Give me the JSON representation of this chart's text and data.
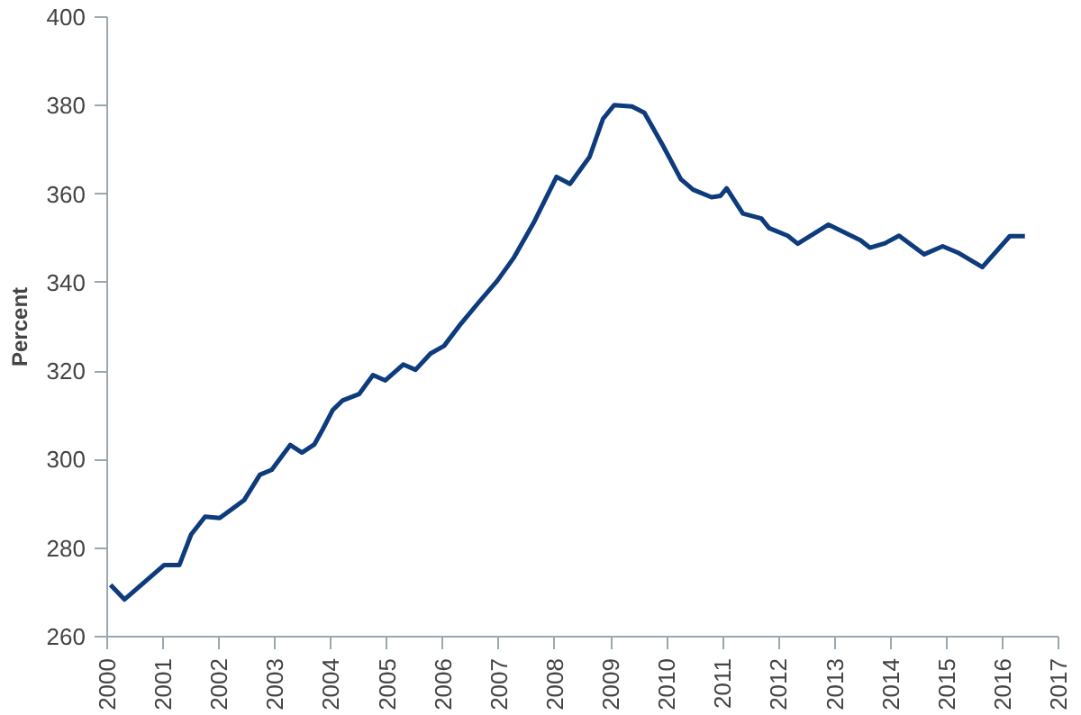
{
  "chart_data": {
    "type": "line",
    "ylabel": "Percent",
    "xlim": [
      2000,
      2017
    ],
    "xticks": [
      2000,
      2001,
      2002,
      2003,
      2004,
      2005,
      2006,
      2007,
      2008,
      2009,
      2010,
      2011,
      2012,
      2013,
      2014,
      2015,
      2016,
      2017
    ],
    "ylim": [
      260,
      400
    ],
    "yticks": [
      260,
      280,
      300,
      320,
      340,
      360,
      380,
      400
    ],
    "grid": false,
    "marker": "none",
    "line_style": "solid",
    "series": [
      {
        "color": "#0d3b7c",
        "x": [
          2000.06,
          2000.31,
          2001.02,
          2001.29,
          2001.5,
          2001.75,
          2002.01,
          2002.45,
          2002.73,
          2002.94,
          2003.27,
          2003.48,
          2003.7,
          2003.85,
          2004.03,
          2004.21,
          2004.5,
          2004.75,
          2004.97,
          2005.29,
          2005.51,
          2005.78,
          2006.02,
          2006.32,
          2006.65,
          2006.97,
          2007.27,
          2007.62,
          2008.03,
          2008.27,
          2008.62,
          2008.86,
          2009.06,
          2009.38,
          2009.6,
          2009.93,
          2010.25,
          2010.47,
          2010.8,
          2010.96,
          2011.07,
          2011.36,
          2011.69,
          2011.83,
          2012.16,
          2012.34,
          2012.89,
          2013.46,
          2013.63,
          2013.9,
          2014.15,
          2014.6,
          2014.93,
          2015.2,
          2015.64,
          2016.13,
          2016.4
        ],
        "values": [
          271.7,
          268.4,
          276.2,
          276.2,
          283.1,
          287.1,
          286.8,
          290.9,
          296.6,
          297.7,
          303.3,
          301.6,
          303.4,
          306.8,
          311.2,
          313.4,
          314.8,
          319.1,
          317.9,
          321.5,
          320.3,
          324.0,
          325.7,
          330.7,
          335.7,
          340.4,
          345.7,
          353.5,
          363.9,
          362.3,
          368.4,
          377.0,
          380.1,
          379.8,
          378.4,
          371.0,
          363.4,
          361.0,
          359.3,
          359.6,
          361.3,
          355.6,
          354.5,
          352.3,
          350.6,
          348.8,
          353.1,
          349.6,
          347.9,
          348.9,
          350.6,
          346.4,
          348.2,
          346.8,
          343.5,
          350.5,
          350.5
        ]
      }
    ]
  }
}
